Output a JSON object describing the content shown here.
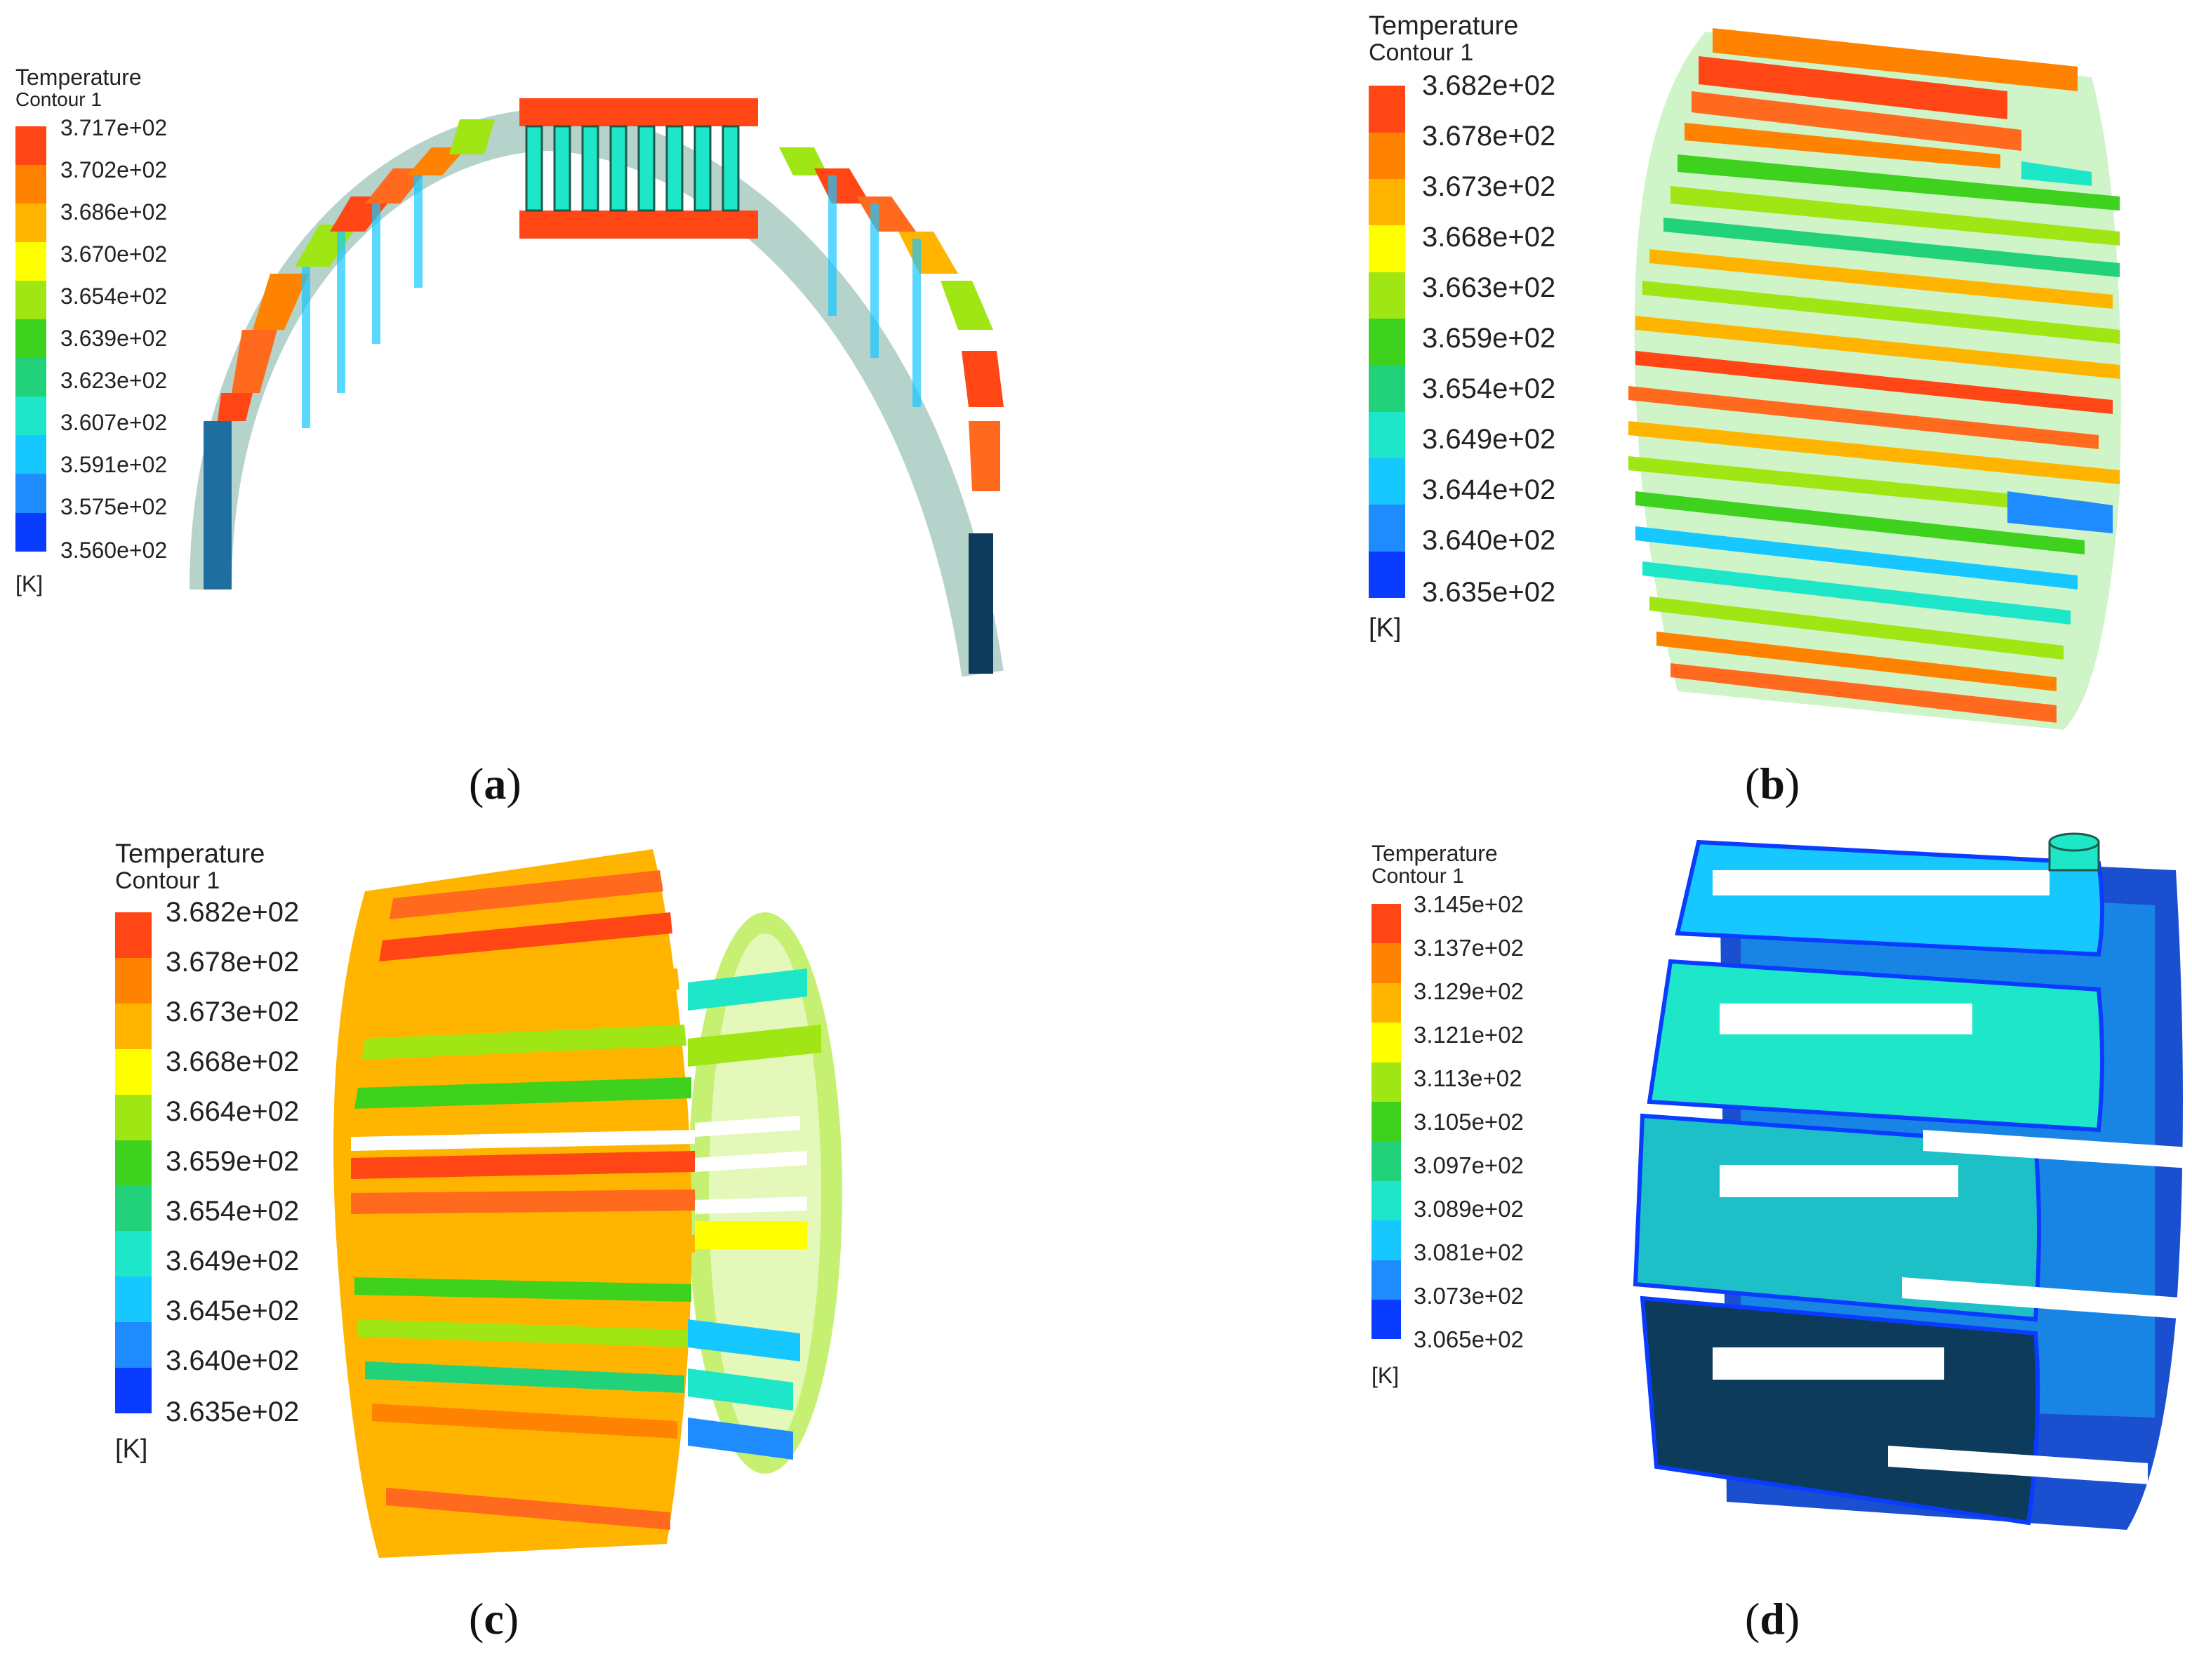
{
  "colormap": [
    "#0a3cff",
    "#1e8cff",
    "#16c8ff",
    "#1ee6c8",
    "#22d27a",
    "#3ed21e",
    "#a0e614",
    "#ffff00",
    "#ffb400",
    "#ff8200",
    "#ff4614"
  ],
  "panels": [
    {
      "caption": "a",
      "legend": {
        "title": "Temperature",
        "subtitle": "Contour 1",
        "unit": "[K]",
        "labels": [
          "3.717e+02",
          "3.702e+02",
          "3.686e+02",
          "3.670e+02",
          "3.654e+02",
          "3.639e+02",
          "3.623e+02",
          "3.607e+02",
          "3.591e+02",
          "3.575e+02",
          "3.560e+02"
        ]
      }
    },
    {
      "caption": "b",
      "legend": {
        "title": "Temperature",
        "subtitle": "Contour 1",
        "unit": "[K]",
        "labels": [
          "3.682e+02",
          "3.678e+02",
          "3.673e+02",
          "3.668e+02",
          "3.663e+02",
          "3.659e+02",
          "3.654e+02",
          "3.649e+02",
          "3.644e+02",
          "3.640e+02",
          "3.635e+02"
        ]
      }
    },
    {
      "caption": "c",
      "legend": {
        "title": "Temperature",
        "subtitle": "Contour 1",
        "unit": "[K]",
        "labels": [
          "3.682e+02",
          "3.678e+02",
          "3.673e+02",
          "3.668e+02",
          "3.664e+02",
          "3.659e+02",
          "3.654e+02",
          "3.649e+02",
          "3.645e+02",
          "3.640e+02",
          "3.635e+02"
        ]
      }
    },
    {
      "caption": "d",
      "legend": {
        "title": "Temperature",
        "subtitle": "Contour 1",
        "unit": "[K]",
        "labels": [
          "3.145e+02",
          "3.137e+02",
          "3.129e+02",
          "3.121e+02",
          "3.113e+02",
          "3.105e+02",
          "3.097e+02",
          "3.089e+02",
          "3.081e+02",
          "3.073e+02",
          "3.065e+02"
        ]
      }
    }
  ]
}
